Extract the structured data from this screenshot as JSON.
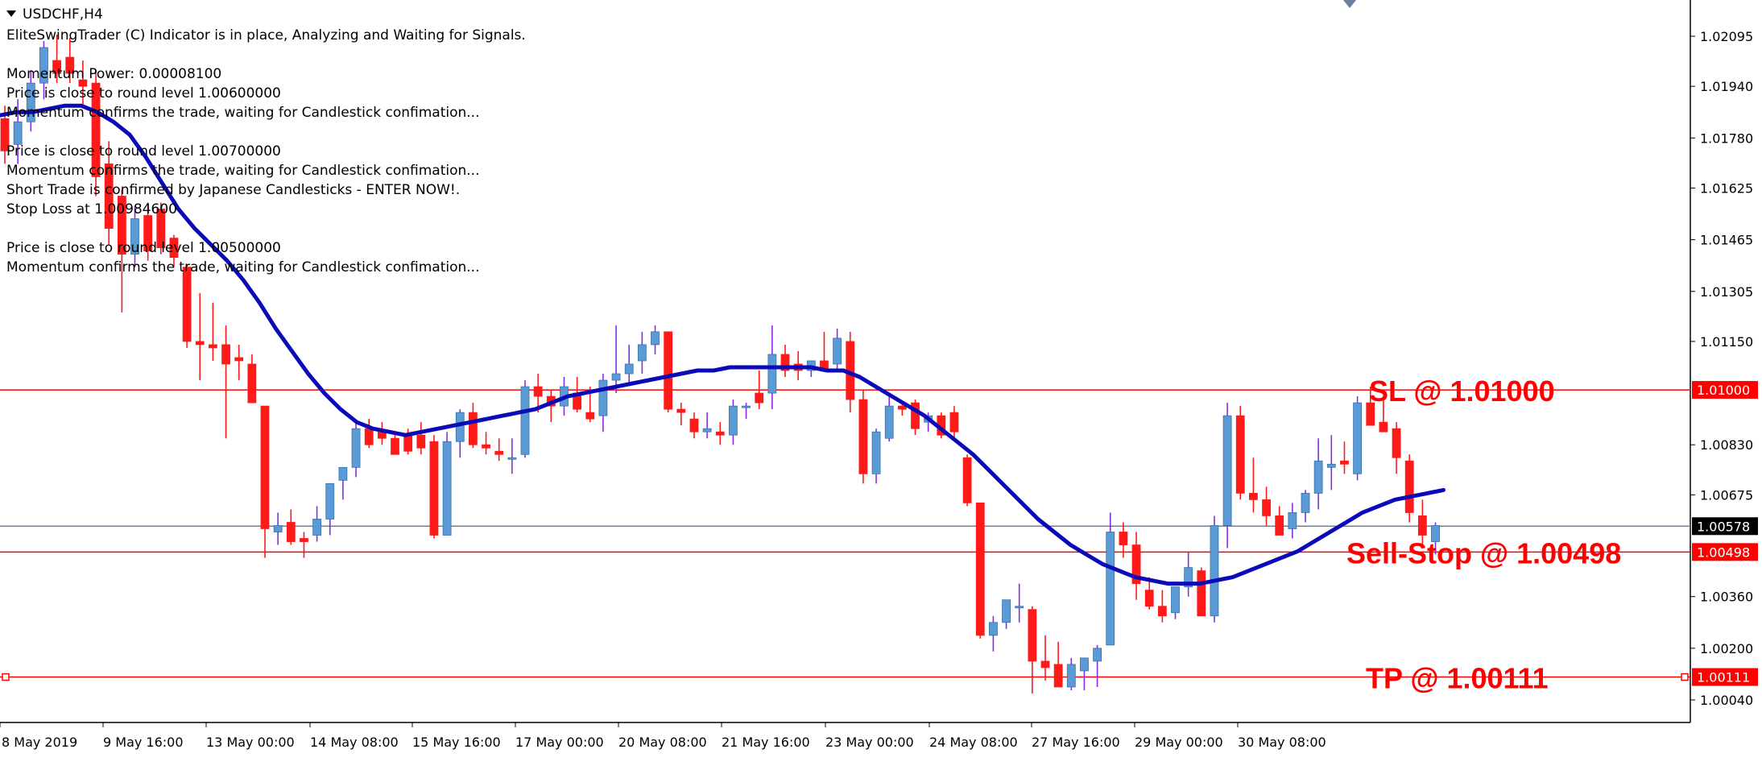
{
  "symbol": "USDCHF,H4",
  "info_lines": [
    "EliteSwingTrader (C) Indicator is in place, Analyzing and Waiting for Signals.",
    "",
    "Momentum Power: 0.00008100",
    "Price is close to round level 1.00600000",
    "Momentum confirms the trade, waiting for Candlestick confimation...",
    "",
    "Price is close to round level 1.00700000",
    "Momentum confirms the trade, waiting for Candlestick confimation...",
    "Short Trade is confirmed by Japanese Candlesticks - ENTER NOW!.",
    "Stop Loss at 1.00984600",
    "",
    "Price is close to round level 1.00500000",
    "Momentum confirms the trade, waiting for Candlestick confimation..."
  ],
  "colors": {
    "bull": "#5b9bd5",
    "bear": "#ff1a1a",
    "wick_bull": "#8a2be2",
    "wick_bear": "#ff1a1a",
    "ma": "#0a0ab8",
    "level": "#ff0000",
    "current": "#6b7f9e"
  },
  "chart_data": {
    "type": "candlestick",
    "symbol": "USDCHF",
    "timeframe": "H4",
    "ylim": [
      1.0004,
      1.02095
    ],
    "y_ticks": [
      "1.02095",
      "1.01940",
      "1.01780",
      "1.01625",
      "1.01465",
      "1.01305",
      "1.01150",
      "1.00830",
      "1.00675",
      "1.00360",
      "1.00200",
      "1.00040"
    ],
    "x_ticks": [
      "8 May 2019",
      "9 May 16:00",
      "13 May 00:00",
      "14 May 08:00",
      "15 May 16:00",
      "17 May 00:00",
      "20 May 08:00",
      "21 May 16:00",
      "23 May 00:00",
      "24 May 08:00",
      "27 May 16:00",
      "29 May 00:00",
      "30 May 08:00"
    ],
    "candles_ohlc": [
      [
        1.0184,
        1.0188,
        1.017,
        1.0174
      ],
      [
        1.0176,
        1.019,
        1.017,
        1.0183
      ],
      [
        1.0183,
        1.0199,
        1.018,
        1.0195
      ],
      [
        1.0195,
        1.0208,
        1.019,
        1.0206
      ],
      [
        1.0202,
        1.021,
        1.0195,
        1.0198
      ],
      [
        1.0203,
        1.0209,
        1.0195,
        1.0198
      ],
      [
        1.0196,
        1.0202,
        1.0188,
        1.0194
      ],
      [
        1.0195,
        1.0199,
        1.016,
        1.0166
      ],
      [
        1.017,
        1.0177,
        1.0145,
        1.015
      ],
      [
        1.016,
        1.0162,
        1.0124,
        1.0142
      ],
      [
        1.0142,
        1.0157,
        1.0138,
        1.0153
      ],
      [
        1.0154,
        1.0158,
        1.014,
        1.0143
      ],
      [
        1.0156,
        1.0158,
        1.0142,
        1.0144
      ],
      [
        1.0147,
        1.0148,
        1.0138,
        1.0141
      ],
      [
        1.0138,
        1.0139,
        1.0113,
        1.0115
      ],
      [
        1.0115,
        1.013,
        1.0103,
        1.0114
      ],
      [
        1.0114,
        1.0127,
        1.0109,
        1.0113
      ],
      [
        1.0114,
        1.012,
        1.0085,
        1.0108
      ],
      [
        1.011,
        1.0114,
        1.0103,
        1.0109
      ],
      [
        1.0108,
        1.0111,
        1.0096,
        1.0096
      ],
      [
        1.0095,
        1.0095,
        1.0048,
        1.0057
      ],
      [
        1.0056,
        1.0062,
        1.0052,
        1.0058
      ],
      [
        1.0059,
        1.0063,
        1.0052,
        1.0053
      ],
      [
        1.0054,
        1.0056,
        1.0048,
        1.0053
      ],
      [
        1.0055,
        1.0064,
        1.0053,
        1.006
      ],
      [
        1.006,
        1.0069,
        1.0055,
        1.0071
      ],
      [
        1.0072,
        1.0076,
        1.0066,
        1.0076
      ],
      [
        1.0076,
        1.009,
        1.0073,
        1.0088
      ],
      [
        1.0088,
        1.0091,
        1.0082,
        1.0083
      ],
      [
        1.0087,
        1.009,
        1.0083,
        1.0085
      ],
      [
        1.0085,
        1.0087,
        1.008,
        1.008
      ],
      [
        1.0086,
        1.0088,
        1.008,
        1.0081
      ],
      [
        1.0086,
        1.009,
        1.008,
        1.0082
      ],
      [
        1.0084,
        1.0086,
        1.0054,
        1.0055
      ],
      [
        1.0055,
        1.0087,
        1.0055,
        1.0084
      ],
      [
        1.0084,
        1.0094,
        1.0079,
        1.0093
      ],
      [
        1.0093,
        1.0096,
        1.0082,
        1.0083
      ],
      [
        1.0083,
        1.0087,
        1.008,
        1.0082
      ],
      [
        1.0081,
        1.0085,
        1.0078,
        1.008
      ],
      [
        1.0079,
        1.0085,
        1.0074,
        1.0079
      ],
      [
        1.008,
        1.0103,
        1.0079,
        1.0101
      ],
      [
        1.0101,
        1.0105,
        1.0093,
        1.0098
      ],
      [
        1.0098,
        1.01,
        1.009,
        1.0095
      ],
      [
        1.0095,
        1.0104,
        1.0092,
        1.0101
      ],
      [
        1.0099,
        1.0104,
        1.0093,
        1.0094
      ],
      [
        1.0093,
        1.0101,
        1.009,
        1.0091
      ],
      [
        1.0092,
        1.0105,
        1.0087,
        1.0103
      ],
      [
        1.0103,
        1.012,
        1.0099,
        1.0105
      ],
      [
        1.0105,
        1.0114,
        1.0102,
        1.0108
      ],
      [
        1.0109,
        1.0118,
        1.0105,
        1.0114
      ],
      [
        1.0114,
        1.012,
        1.0111,
        1.0118
      ],
      [
        1.0118,
        1.0118,
        1.0093,
        1.0094
      ],
      [
        1.0094,
        1.0096,
        1.0089,
        1.0093
      ],
      [
        1.0091,
        1.0093,
        1.0085,
        1.0087
      ],
      [
        1.0087,
        1.0093,
        1.0085,
        1.0088
      ],
      [
        1.0087,
        1.009,
        1.0083,
        1.0086
      ],
      [
        1.0086,
        1.0097,
        1.0083,
        1.0095
      ],
      [
        1.0095,
        1.0096,
        1.0091,
        1.0095
      ],
      [
        1.0099,
        1.0106,
        1.0094,
        1.0096
      ],
      [
        1.0099,
        1.012,
        1.0094,
        1.0111
      ],
      [
        1.0111,
        1.0114,
        1.0104,
        1.0106
      ],
      [
        1.0108,
        1.0112,
        1.0103,
        1.0106
      ],
      [
        1.0106,
        1.0109,
        1.0104,
        1.0109
      ],
      [
        1.0109,
        1.0118,
        1.0106,
        1.0106
      ],
      [
        1.0108,
        1.0119,
        1.0106,
        1.0116
      ],
      [
        1.0115,
        1.0118,
        1.0093,
        1.0097
      ],
      [
        1.0097,
        1.01,
        1.0071,
        1.0074
      ],
      [
        1.0074,
        1.0088,
        1.0071,
        1.0087
      ],
      [
        1.0085,
        1.0098,
        1.0084,
        1.0095
      ],
      [
        1.0095,
        1.0096,
        1.0092,
        1.0094
      ],
      [
        1.0096,
        1.0097,
        1.0086,
        1.0088
      ],
      [
        1.009,
        1.0093,
        1.0087,
        1.0092
      ],
      [
        1.0092,
        1.0093,
        1.0085,
        1.0086
      ],
      [
        1.0093,
        1.0095,
        1.0085,
        1.0087
      ],
      [
        1.0079,
        1.008,
        1.0064,
        1.0065
      ],
      [
        1.0065,
        1.0065,
        1.0023,
        1.0024
      ],
      [
        1.0024,
        1.003,
        1.0019,
        1.0028
      ],
      [
        1.0028,
        1.0034,
        1.0026,
        1.0035
      ],
      [
        1.0033,
        1.004,
        1.0028,
        1.0033
      ],
      [
        1.0032,
        1.0033,
        1.0006,
        1.0016
      ],
      [
        1.0016,
        1.0024,
        1.001,
        1.0014
      ],
      [
        1.0015,
        1.0022,
        1.0009,
        1.0008
      ],
      [
        1.0008,
        1.0017,
        1.0007,
        1.0015
      ],
      [
        1.0013,
        1.0017,
        1.0007,
        1.0017
      ],
      [
        1.0016,
        1.0021,
        1.0008,
        1.002
      ],
      [
        1.0021,
        1.0062,
        1.0022,
        1.0056
      ],
      [
        1.0056,
        1.0059,
        1.0048,
        1.0052
      ],
      [
        1.0052,
        1.0056,
        1.0035,
        1.004
      ],
      [
        1.0038,
        1.0042,
        1.0032,
        1.0033
      ],
      [
        1.0033,
        1.0038,
        1.0028,
        1.003
      ],
      [
        1.0031,
        1.0038,
        1.0029,
        1.0039
      ],
      [
        1.0039,
        1.005,
        1.0036,
        1.0045
      ],
      [
        1.0044,
        1.0045,
        1.003,
        1.003
      ],
      [
        1.003,
        1.0061,
        1.0028,
        1.0058
      ],
      [
        1.0058,
        1.0096,
        1.0051,
        1.0092
      ],
      [
        1.0092,
        1.0095,
        1.0066,
        1.0068
      ],
      [
        1.0068,
        1.0079,
        1.0062,
        1.0066
      ],
      [
        1.0066,
        1.007,
        1.0058,
        1.0061
      ],
      [
        1.0061,
        1.0064,
        1.0055,
        1.0055
      ],
      [
        1.0057,
        1.0065,
        1.0054,
        1.0062
      ],
      [
        1.0062,
        1.0069,
        1.0059,
        1.0068
      ],
      [
        1.0068,
        1.0085,
        1.0063,
        1.0078
      ],
      [
        1.0076,
        1.0086,
        1.0069,
        1.0077
      ],
      [
        1.0078,
        1.0084,
        1.0074,
        1.0077
      ],
      [
        1.0074,
        1.0098,
        1.0072,
        1.0096
      ],
      [
        1.0096,
        1.0101,
        1.0095,
        1.0089
      ],
      [
        1.009,
        1.0098,
        1.0088,
        1.0087
      ],
      [
        1.0088,
        1.009,
        1.0074,
        1.0079
      ],
      [
        1.0078,
        1.008,
        1.0059,
        1.0062
      ],
      [
        1.0061,
        1.0066,
        1.0052,
        1.0055
      ],
      [
        1.0053,
        1.0059,
        1.0049,
        1.0058
      ]
    ],
    "moving_average": [
      1.0185,
      1.0186,
      1.0186,
      1.0187,
      1.0188,
      1.0188,
      1.0186,
      1.0183,
      1.0179,
      1.0172,
      1.0164,
      1.0156,
      1.015,
      1.0145,
      1.014,
      1.0134,
      1.0127,
      1.0119,
      1.0112,
      1.0105,
      1.0099,
      1.0094,
      1.009,
      1.0088,
      1.0087,
      1.0086,
      1.0087,
      1.0088,
      1.0089,
      1.009,
      1.0091,
      1.0092,
      1.0093,
      1.0094,
      1.0096,
      1.0098,
      1.0099,
      1.01,
      1.0101,
      1.0102,
      1.0103,
      1.0104,
      1.0105,
      1.0106,
      1.0106,
      1.0107,
      1.0107,
      1.0107,
      1.0107,
      1.0107,
      1.0107,
      1.0106,
      1.0106,
      1.0104,
      1.0101,
      1.0098,
      1.0095,
      1.0092,
      1.0088,
      1.0084,
      1.008,
      1.0075,
      1.007,
      1.0065,
      1.006,
      1.0056,
      1.0052,
      1.0049,
      1.0046,
      1.0044,
      1.0042,
      1.0041,
      1.004,
      1.004,
      1.004,
      1.0041,
      1.0042,
      1.0044,
      1.0046,
      1.0048,
      1.005,
      1.0053,
      1.0056,
      1.0059,
      1.0062,
      1.0064,
      1.0066,
      1.0067,
      1.0068,
      1.0069
    ],
    "levels": [
      {
        "label": "SL @ 1.01000",
        "price": 1.01,
        "badge": "1.01000"
      },
      {
        "label": "Sell-Stop @ 1.00498",
        "price": 1.00498,
        "badge": "1.00498"
      },
      {
        "label": "TP @ 1.00111",
        "price": 1.00111,
        "badge": "1.00111"
      }
    ],
    "current_price": {
      "price": 1.00578,
      "badge": "1.00578"
    },
    "grid": false
  }
}
